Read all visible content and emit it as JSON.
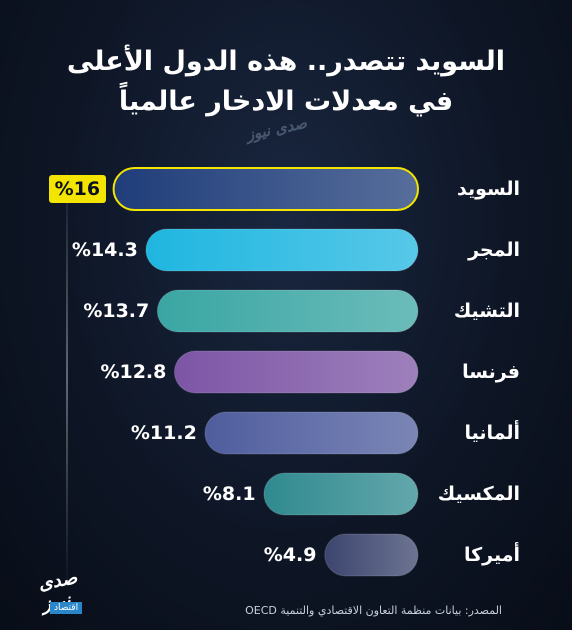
{
  "title": {
    "line1": "السويد تتصدر.. هذه الدول الأعلى",
    "line2": "في معدلات الادخار عالمياً"
  },
  "watermark": "صدى نيوز",
  "logo": {
    "brand": "صدى نيوز",
    "tag": "اقتصاد"
  },
  "source": "المصدر: بيانات منظمة التعاون الاقتصادي والتنمية OECD",
  "chart_data": {
    "type": "bar",
    "orientation": "horizontal",
    "title": "السويد تتصدر.. هذه الدول الأعلى في معدلات الادخار عالمياً",
    "categories": [
      "السويد",
      "المجر",
      "التشيك",
      "فرنسا",
      "ألمانيا",
      "المكسيك",
      "أميركا"
    ],
    "values": [
      16,
      14.3,
      13.7,
      12.8,
      11.2,
      8.1,
      4.9
    ],
    "value_labels": [
      "%16",
      "%14.3",
      "%13.7",
      "%12.8",
      "%11.2",
      "%8.1",
      "%4.9"
    ],
    "highlight_index": 0,
    "xlim": [
      0,
      18.5
    ],
    "grid": false,
    "colors": [
      "#1f3d7a",
      "#1fb6e0",
      "#3aa6a3",
      "#7d55a6",
      "#4f5d9e",
      "#2f8a8f",
      "#3c456e"
    ]
  }
}
